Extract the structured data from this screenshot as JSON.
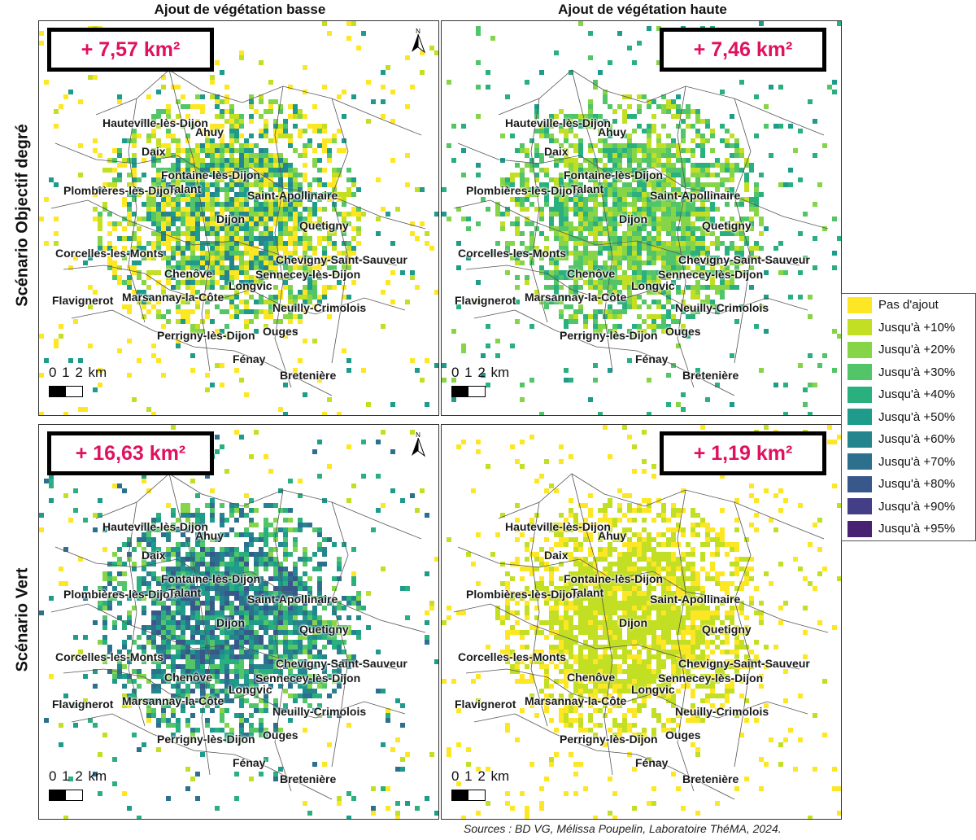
{
  "columns": [
    {
      "title": "Ajout de végétation basse"
    },
    {
      "title": "Ajout de végétation haute"
    }
  ],
  "rows": [
    {
      "title": "Scénario Objectif degré"
    },
    {
      "title": "Scénario Vert"
    }
  ],
  "panels": [
    {
      "area": "+ 7,57 km²",
      "has_north": true,
      "scheme": "mixed"
    },
    {
      "area": "+ 7,46 km²",
      "has_north": false,
      "scheme": "green"
    },
    {
      "area": "+ 16,63 km²",
      "has_north": true,
      "scheme": "dark"
    },
    {
      "area": "+ 1,19 km²",
      "has_north": false,
      "scheme": "light"
    }
  ],
  "north_label": "N",
  "scale": {
    "label": "0 1 2 km"
  },
  "towns": [
    {
      "name": "Hauteville-lès-Dijon"
    },
    {
      "name": "Ahuy"
    },
    {
      "name": "Daix"
    },
    {
      "name": "Fontaine-lès-Dijon"
    },
    {
      "name": "Plombières-lès-Dijon"
    },
    {
      "name": "Talant"
    },
    {
      "name": "Saint-Apollinaire"
    },
    {
      "name": "Dijon"
    },
    {
      "name": "Quetigny"
    },
    {
      "name": "Corcelles-les-Monts"
    },
    {
      "name": "Chevigny-Saint-Sauveur"
    },
    {
      "name": "Chenôve"
    },
    {
      "name": "Sennecey-lès-Dijon"
    },
    {
      "name": "Longvic"
    },
    {
      "name": "Flavignerot"
    },
    {
      "name": "Marsannay-la-Côte"
    },
    {
      "name": "Neuilly-Crimolois"
    },
    {
      "name": "Perrigny-lès-Dijon"
    },
    {
      "name": "Ouges"
    },
    {
      "name": "Fénay"
    },
    {
      "name": "Bretenière"
    }
  ],
  "legend": [
    {
      "label": "Pas d'ajout",
      "color": "#fde725"
    },
    {
      "label": "Jusqu'à +10%",
      "color": "#c2df23"
    },
    {
      "label": "Jusqu'à +20%",
      "color": "#86d549"
    },
    {
      "label": "Jusqu'à +30%",
      "color": "#52c569"
    },
    {
      "label": "Jusqu'à +40%",
      "color": "#2ab07f"
    },
    {
      "label": "Jusqu'à +50%",
      "color": "#1e9b8a"
    },
    {
      "label": "Jusqu'à +60%",
      "color": "#25858e"
    },
    {
      "label": "Jusqu'à +70%",
      "color": "#2d708e"
    },
    {
      "label": "Jusqu'à +80%",
      "color": "#38588c"
    },
    {
      "label": "Jusqu'à +90%",
      "color": "#433e85"
    },
    {
      "label": "Jusqu'à +95%",
      "color": "#482173"
    }
  ],
  "source": "Sources : BD VG, Mélissa Poupelin, Laboratoire ThéMA, 2024."
}
